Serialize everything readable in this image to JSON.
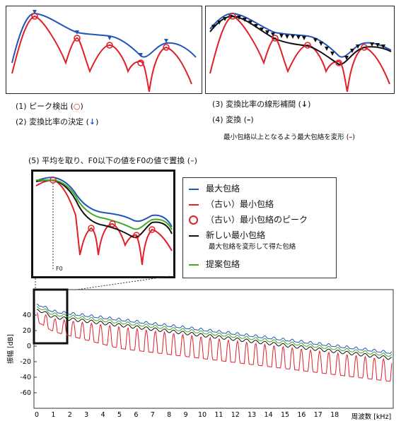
{
  "captions": {
    "step1": "(1) ピーク検出 (",
    "step1_end": ")",
    "step2": "(2) 変換比率の決定 (",
    "step2_end": ")",
    "step3": "(3) 変換比率の線形補間 (",
    "step3_end": ")",
    "step4": "(4) 変換 (",
    "step4_end": ")",
    "step4_sub": "最小包絡以上となるよう最大包絡を変形 (",
    "step4_sub_end": ")",
    "step5": "(5) 平均を取り、F0以下の値をF0の値で置換 (",
    "step5_end": ")"
  },
  "legend": {
    "items": [
      {
        "label": "最大包絡",
        "sub": ""
      },
      {
        "label": "（古い）最小包絡",
        "sub": ""
      },
      {
        "label": "（古い）最小包絡のピーク",
        "sub": ""
      },
      {
        "label": "新しい最小包絡",
        "sub": "最大包絡を変形して得た包絡"
      },
      {
        "label": "提案包絡",
        "sub": ""
      }
    ]
  },
  "inset_label": "F0",
  "axis": {
    "ylabel": "振幅 [dB]",
    "xlabel": "周波数 [kHz]",
    "yticks": [
      "40",
      "20",
      "0",
      "-20",
      "-40",
      "-60"
    ],
    "xticks": [
      "0",
      "1",
      "2",
      "3",
      "4",
      "5",
      "6",
      "7",
      "8",
      "9",
      "10",
      "11",
      "12",
      "13",
      "14",
      "15",
      "16",
      "17",
      "18"
    ]
  },
  "colors": {
    "max_envelope": "#2255bb",
    "min_envelope": "#e0202a",
    "peaks": "#e0202a",
    "new_min_envelope": "#111111",
    "proposed": "#44aa22"
  }
}
